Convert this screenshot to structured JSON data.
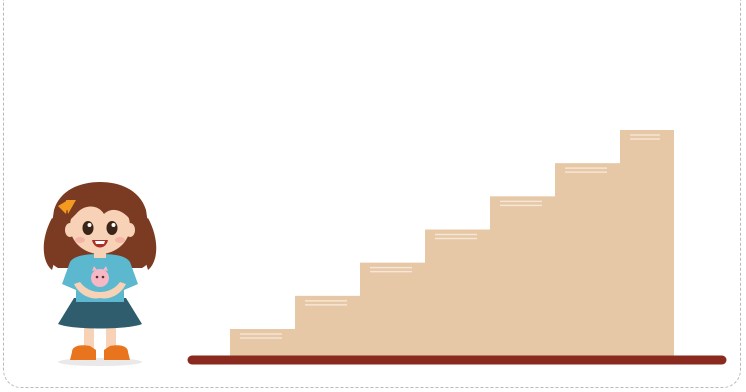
{
  "scene": {
    "step_count": 7,
    "colors": {
      "background": "#ffffff",
      "frame_border": "#b9b9b9",
      "step_fill": "#e6c7a6",
      "step_highlight": "#f6e6d4",
      "floor": "#8a2a1f",
      "girl_hair": "#7a3b22",
      "girl_skin": "#f7d2b6",
      "girl_shirt": "#5bb8cf",
      "girl_skirt": "#2f5d6e",
      "girl_shoes": "#e8741e",
      "hair_bow": "#f29b20"
    },
    "icons": {
      "girl": "girl-character-icon",
      "staircase": "staircase-icon",
      "floor": "floor-line"
    }
  }
}
